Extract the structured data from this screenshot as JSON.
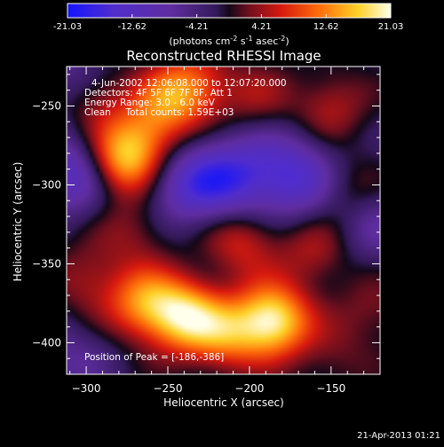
{
  "colorbar": {
    "ticks": [
      "-21.03",
      "-12.62",
      "-4.21",
      "4.21",
      "12.62",
      "21.03"
    ],
    "units": {
      "prefix": "(photons cm",
      "exp1": "-2",
      "mid1": " s",
      "exp2": "-1",
      "mid2": " asec",
      "exp3": "-2",
      "suffix": ")"
    }
  },
  "chart_data": {
    "type": "heatmap",
    "title": "Reconstructed RHESSI Image",
    "xlabel": "Heliocentric X (arcsec)",
    "ylabel": "Heliocentric Y (arcsec)",
    "xlim": [
      -312,
      -120
    ],
    "ylim": [
      -420,
      -225
    ],
    "xticks": [
      -300,
      -250,
      -200,
      -150
    ],
    "yticks": [
      -250,
      -300,
      -350,
      -400
    ],
    "value_range": [
      -21.03,
      21.03
    ],
    "colormap": "RHESSI thermal (blue-purple-red-orange-yellow-white)",
    "info": [
      "4-Jun-2002 12:06:08.000 to 12:07:20.000",
      "Detectors: 4F 5F 6F 7F 8F, Att 1",
      "Energy Range: 3.0 - 6.0 keV",
      "Clean     Total counts: 1.59E+03"
    ],
    "peak_text": "Position of Peak = [-186,-386]",
    "peak": [
      -186,
      -386
    ],
    "sources": [
      {
        "x": -186,
        "y": -386,
        "value": 21.0
      },
      {
        "x": -240,
        "y": -383,
        "value": 17.5
      },
      {
        "x": -265,
        "y": -375,
        "value": 13.0
      },
      {
        "x": -215,
        "y": -395,
        "value": 11.5
      },
      {
        "x": -278,
        "y": -285,
        "value": 17.0
      },
      {
        "x": -262,
        "y": -268,
        "value": 8.5
      },
      {
        "x": -248,
        "y": -245,
        "value": 10.5
      },
      {
        "x": -232,
        "y": -236,
        "value": 8.0
      },
      {
        "x": -295,
        "y": -245,
        "value": 7.0
      },
      {
        "x": -205,
        "y": -335,
        "value": 8.5
      },
      {
        "x": -160,
        "y": -342,
        "value": 6.5
      },
      {
        "x": -300,
        "y": -360,
        "value": 6.0
      },
      {
        "x": -270,
        "y": -330,
        "value": 5.0
      },
      {
        "x": -150,
        "y": -250,
        "value": 6.5
      },
      {
        "x": -140,
        "y": -305,
        "value": 5.5
      },
      {
        "x": -195,
        "y": -245,
        "value": 5.0
      },
      {
        "x": -125,
        "y": -380,
        "value": 4.5
      },
      {
        "x": -150,
        "y": -410,
        "value": 3.5
      }
    ],
    "dips": [
      {
        "x": -308,
        "y": -292,
        "value": -12.0
      },
      {
        "x": -212,
        "y": -296,
        "value": -12.5
      },
      {
        "x": -240,
        "y": -300,
        "value": -10.0
      },
      {
        "x": -180,
        "y": -290,
        "value": -8.0
      },
      {
        "x": -165,
        "y": -300,
        "value": -7.0
      },
      {
        "x": -310,
        "y": -230,
        "value": -6.0
      },
      {
        "x": -125,
        "y": -325,
        "value": -6.0
      },
      {
        "x": -310,
        "y": -410,
        "value": -5.0
      }
    ]
  },
  "footer": {
    "date": "21-Apr-2013 01:21"
  }
}
